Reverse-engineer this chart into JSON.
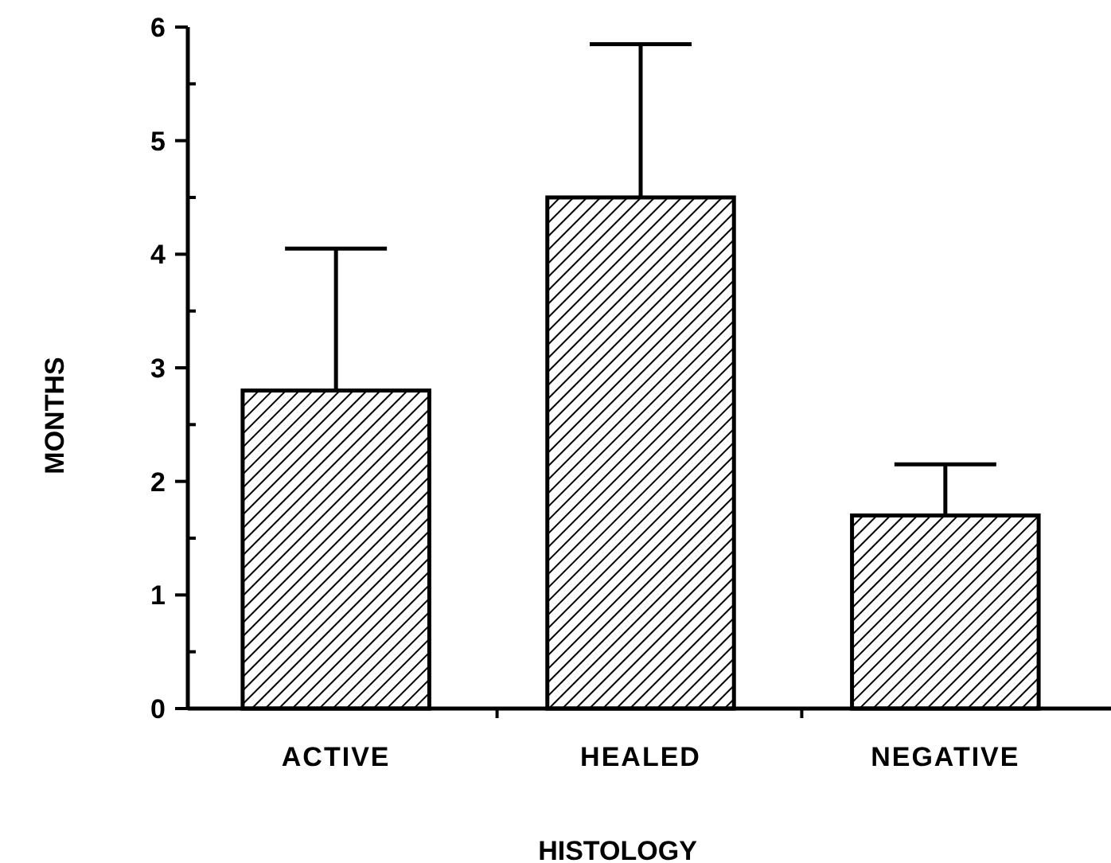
{
  "chart_data": {
    "type": "bar",
    "xlabel": "HISTOLOGY",
    "ylabel": "MONTHS",
    "categories": [
      "ACTIVE",
      "HEALED",
      "NEGATIVE"
    ],
    "values": [
      2.8,
      4.5,
      1.7
    ],
    "errors": [
      [
        2.8,
        4.05
      ],
      [
        4.5,
        5.85
      ],
      [
        1.7,
        2.15
      ]
    ],
    "color": "#000000",
    "ylim": [
      0,
      6
    ],
    "yticks": [
      0,
      {
        "value": 0.5,
        "label": null
      },
      1,
      {
        "value": 1.5,
        "label": null
      },
      2,
      {
        "value": 2.5,
        "label": null
      },
      3,
      {
        "value": 3.5,
        "label": null
      },
      4,
      {
        "value": 4.5,
        "label": null
      },
      5,
      {
        "value": 5.5,
        "label": null
      },
      6
    ]
  }
}
